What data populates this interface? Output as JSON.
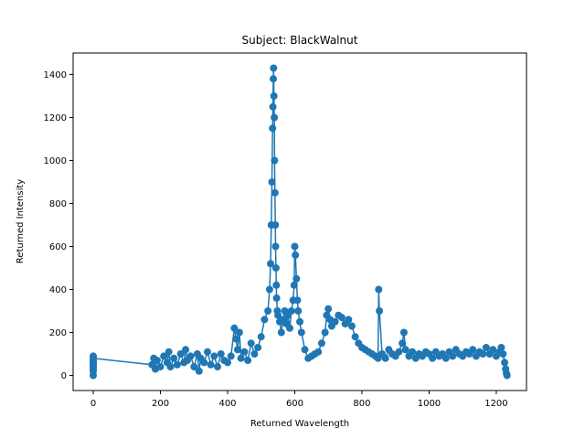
{
  "chart_data": {
    "type": "line",
    "title": "Subject: BlackWalnut",
    "xlabel": "Returned Wavelength",
    "ylabel": "Returned Intensity",
    "xlim": [
      -60,
      1290
    ],
    "ylim": [
      -70,
      1500
    ],
    "xticks": [
      0,
      200,
      400,
      600,
      800,
      1000,
      1200
    ],
    "yticks": [
      0,
      200,
      400,
      600,
      800,
      1000,
      1200,
      1400
    ],
    "grid": false,
    "markers": "circle",
    "series_color": "#1f77b4",
    "series": [
      {
        "x": [
          0,
          0,
          0,
          0,
          0,
          0,
          0,
          0,
          0,
          175,
          180,
          185,
          190,
          200,
          210,
          220,
          225,
          230,
          240,
          250,
          260,
          270,
          275,
          280,
          290,
          300,
          310,
          315,
          320,
          330,
          340,
          350,
          360,
          370,
          380,
          390,
          400,
          410,
          420,
          425,
          430,
          435,
          440,
          450,
          460,
          470,
          480,
          490,
          500,
          510,
          520,
          525,
          528,
          530,
          532,
          534,
          535,
          536,
          537,
          538,
          539,
          540,
          541,
          542,
          543,
          544,
          545,
          546,
          548,
          550,
          555,
          560,
          565,
          570,
          575,
          580,
          585,
          590,
          595,
          598,
          600,
          602,
          605,
          608,
          610,
          615,
          620,
          630,
          640,
          650,
          660,
          670,
          680,
          690,
          695,
          700,
          705,
          710,
          720,
          730,
          740,
          750,
          760,
          770,
          780,
          790,
          800,
          810,
          820,
          830,
          840,
          848,
          850,
          852,
          860,
          870,
          880,
          890,
          900,
          910,
          920,
          925,
          930,
          940,
          950,
          960,
          970,
          980,
          990,
          1000,
          1010,
          1020,
          1030,
          1040,
          1050,
          1060,
          1070,
          1080,
          1090,
          1100,
          1110,
          1120,
          1130,
          1140,
          1150,
          1160,
          1170,
          1180,
          1190,
          1200,
          1210,
          1215,
          1220,
          1225,
          1228,
          1230,
          1232
        ],
        "y": [
          0,
          20,
          40,
          60,
          90,
          70,
          50,
          30,
          80,
          50,
          80,
          30,
          70,
          40,
          90,
          60,
          110,
          40,
          80,
          50,
          100,
          60,
          120,
          70,
          90,
          40,
          100,
          20,
          80,
          60,
          110,
          50,
          90,
          40,
          100,
          70,
          60,
          90,
          220,
          170,
          120,
          200,
          80,
          110,
          70,
          150,
          100,
          130,
          180,
          260,
          300,
          400,
          520,
          700,
          900,
          1150,
          1250,
          1380,
          1430,
          1300,
          1200,
          1000,
          850,
          700,
          600,
          500,
          420,
          360,
          300,
          280,
          250,
          200,
          260,
          300,
          240,
          280,
          220,
          300,
          350,
          420,
          600,
          560,
          450,
          350,
          300,
          250,
          200,
          120,
          80,
          90,
          100,
          110,
          150,
          200,
          280,
          310,
          260,
          230,
          250,
          280,
          270,
          240,
          260,
          230,
          180,
          150,
          130,
          120,
          110,
          100,
          90,
          80,
          400,
          300,
          100,
          80,
          120,
          100,
          90,
          110,
          150,
          200,
          120,
          90,
          110,
          80,
          100,
          90,
          110,
          100,
          80,
          110,
          90,
          100,
          80,
          110,
          90,
          120,
          100,
          90,
          110,
          100,
          120,
          90,
          110,
          100,
          130,
          100,
          120,
          90,
          110,
          130,
          100,
          60,
          30,
          10,
          0
        ]
      }
    ]
  }
}
